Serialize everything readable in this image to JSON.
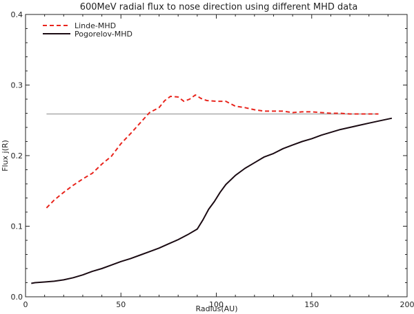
{
  "chart_data": {
    "type": "line",
    "title": "600MeV radial flux to nose direction using different MHD data",
    "xlabel": "Radius(AU)",
    "ylabel": "Flux j(R)",
    "xlim": [
      0,
      200
    ],
    "ylim": [
      0,
      0.4
    ],
    "x_ticks": [
      0,
      50,
      100,
      150,
      200
    ],
    "y_ticks": [
      0.0,
      0.1,
      0.2,
      0.3,
      0.4
    ],
    "x_tick_labels": [
      "0",
      "50",
      "100",
      "150",
      "200"
    ],
    "y_tick_labels": [
      "0.0",
      "0.1",
      "0.2",
      "0.3",
      "0.4"
    ],
    "grid": false,
    "legend_position": "top-left",
    "series": [
      {
        "name": "Linde-MHD",
        "color": "#e8241c",
        "style": "dashed",
        "x": [
          11,
          15,
          20,
          25,
          30,
          35,
          40,
          45,
          50,
          55,
          60,
          65,
          70,
          73,
          76,
          80,
          83,
          86,
          89,
          92,
          95,
          100,
          105,
          110,
          115,
          120,
          125,
          130,
          135,
          140,
          145,
          150,
          155,
          160,
          165,
          170,
          175,
          180,
          185
        ],
        "y": [
          0.126,
          0.137,
          0.148,
          0.158,
          0.167,
          0.175,
          0.188,
          0.199,
          0.217,
          0.231,
          0.246,
          0.261,
          0.268,
          0.278,
          0.284,
          0.283,
          0.277,
          0.28,
          0.286,
          0.281,
          0.278,
          0.277,
          0.277,
          0.27,
          0.268,
          0.265,
          0.263,
          0.263,
          0.263,
          0.261,
          0.262,
          0.262,
          0.261,
          0.26,
          0.26,
          0.259,
          0.259,
          0.259,
          0.259
        ]
      },
      {
        "name": "Pogorelov-MHD",
        "color": "#1a0a12",
        "style": "solid",
        "x": [
          3,
          5,
          10,
          15,
          20,
          25,
          30,
          35,
          40,
          45,
          50,
          55,
          60,
          65,
          70,
          75,
          80,
          85,
          90,
          93,
          96,
          99,
          102,
          105,
          110,
          115,
          120,
          125,
          130,
          135,
          140,
          145,
          150,
          155,
          160,
          165,
          170,
          175,
          180,
          185,
          192
        ],
        "y": [
          0.019,
          0.02,
          0.021,
          0.022,
          0.024,
          0.027,
          0.031,
          0.036,
          0.04,
          0.045,
          0.05,
          0.054,
          0.059,
          0.064,
          0.069,
          0.075,
          0.081,
          0.088,
          0.096,
          0.109,
          0.124,
          0.135,
          0.148,
          0.159,
          0.172,
          0.182,
          0.19,
          0.198,
          0.203,
          0.21,
          0.215,
          0.22,
          0.224,
          0.229,
          0.233,
          0.237,
          0.24,
          0.243,
          0.246,
          0.249,
          0.253
        ]
      }
    ],
    "reference_lines": [
      {
        "y": 0.259,
        "x_start": 11,
        "x_end": 185,
        "color": "#aaaaaa"
      }
    ]
  }
}
